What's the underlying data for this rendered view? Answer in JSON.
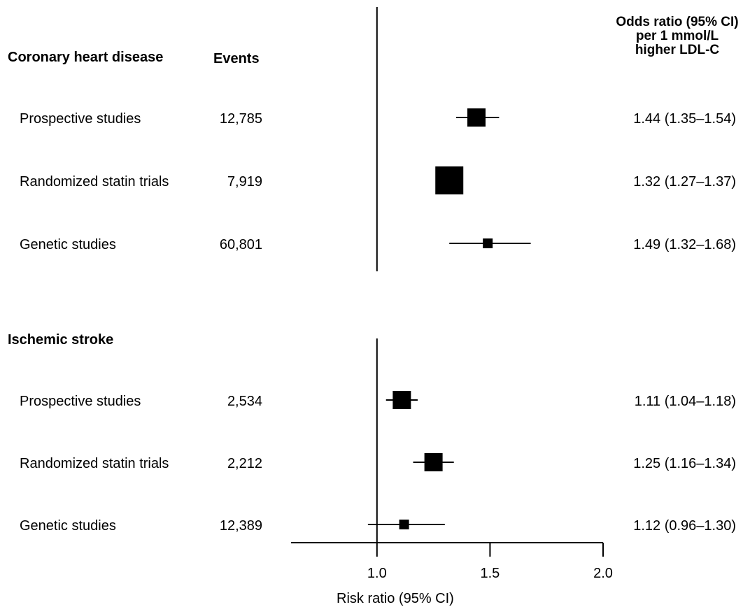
{
  "chart_data": {
    "type": "forest",
    "header": {
      "events": "Events",
      "odds_ratio_lines": [
        "Odds ratio (95% CI)",
        "per 1 mmol/L",
        "higher LDL-C"
      ]
    },
    "x_axis": {
      "title": "Risk ratio (95% CI)",
      "ticks": [
        1.0,
        1.5,
        2.0
      ],
      "tick_labels": [
        "1.0",
        "1.5",
        "2.0"
      ],
      "xlim": [
        0.62,
        2.0
      ],
      "reference_line": 1.0
    },
    "panels": [
      {
        "title": "Coronary heart disease",
        "rows": [
          {
            "label": "Prospective studies",
            "events": "12,785",
            "estimate": 1.44,
            "lower": 1.35,
            "upper": 1.54,
            "ci_text": "1.44 (1.35–1.54)",
            "weight": "medium"
          },
          {
            "label": "Randomized statin trials",
            "events": "7,919",
            "estimate": 1.32,
            "lower": 1.27,
            "upper": 1.37,
            "ci_text": "1.32 (1.27–1.37)",
            "weight": "large"
          },
          {
            "label": "Genetic studies",
            "events": "60,801",
            "estimate": 1.49,
            "lower": 1.32,
            "upper": 1.68,
            "ci_text": "1.49 (1.32–1.68)",
            "weight": "small"
          }
        ]
      },
      {
        "title": "Ischemic stroke",
        "rows": [
          {
            "label": "Prospective studies",
            "events": "2,534",
            "estimate": 1.11,
            "lower": 1.04,
            "upper": 1.18,
            "ci_text": "1.11 (1.04–1.18)",
            "weight": "medium"
          },
          {
            "label": "Randomized statin trials",
            "events": "2,212",
            "estimate": 1.25,
            "lower": 1.16,
            "upper": 1.34,
            "ci_text": "1.25 (1.16–1.34)",
            "weight": "medium"
          },
          {
            "label": "Genetic studies",
            "events": "12,389",
            "estimate": 1.12,
            "lower": 0.96,
            "upper": 1.3,
            "ci_text": "1.12 (0.96–1.30)",
            "weight": "small"
          }
        ]
      }
    ]
  }
}
